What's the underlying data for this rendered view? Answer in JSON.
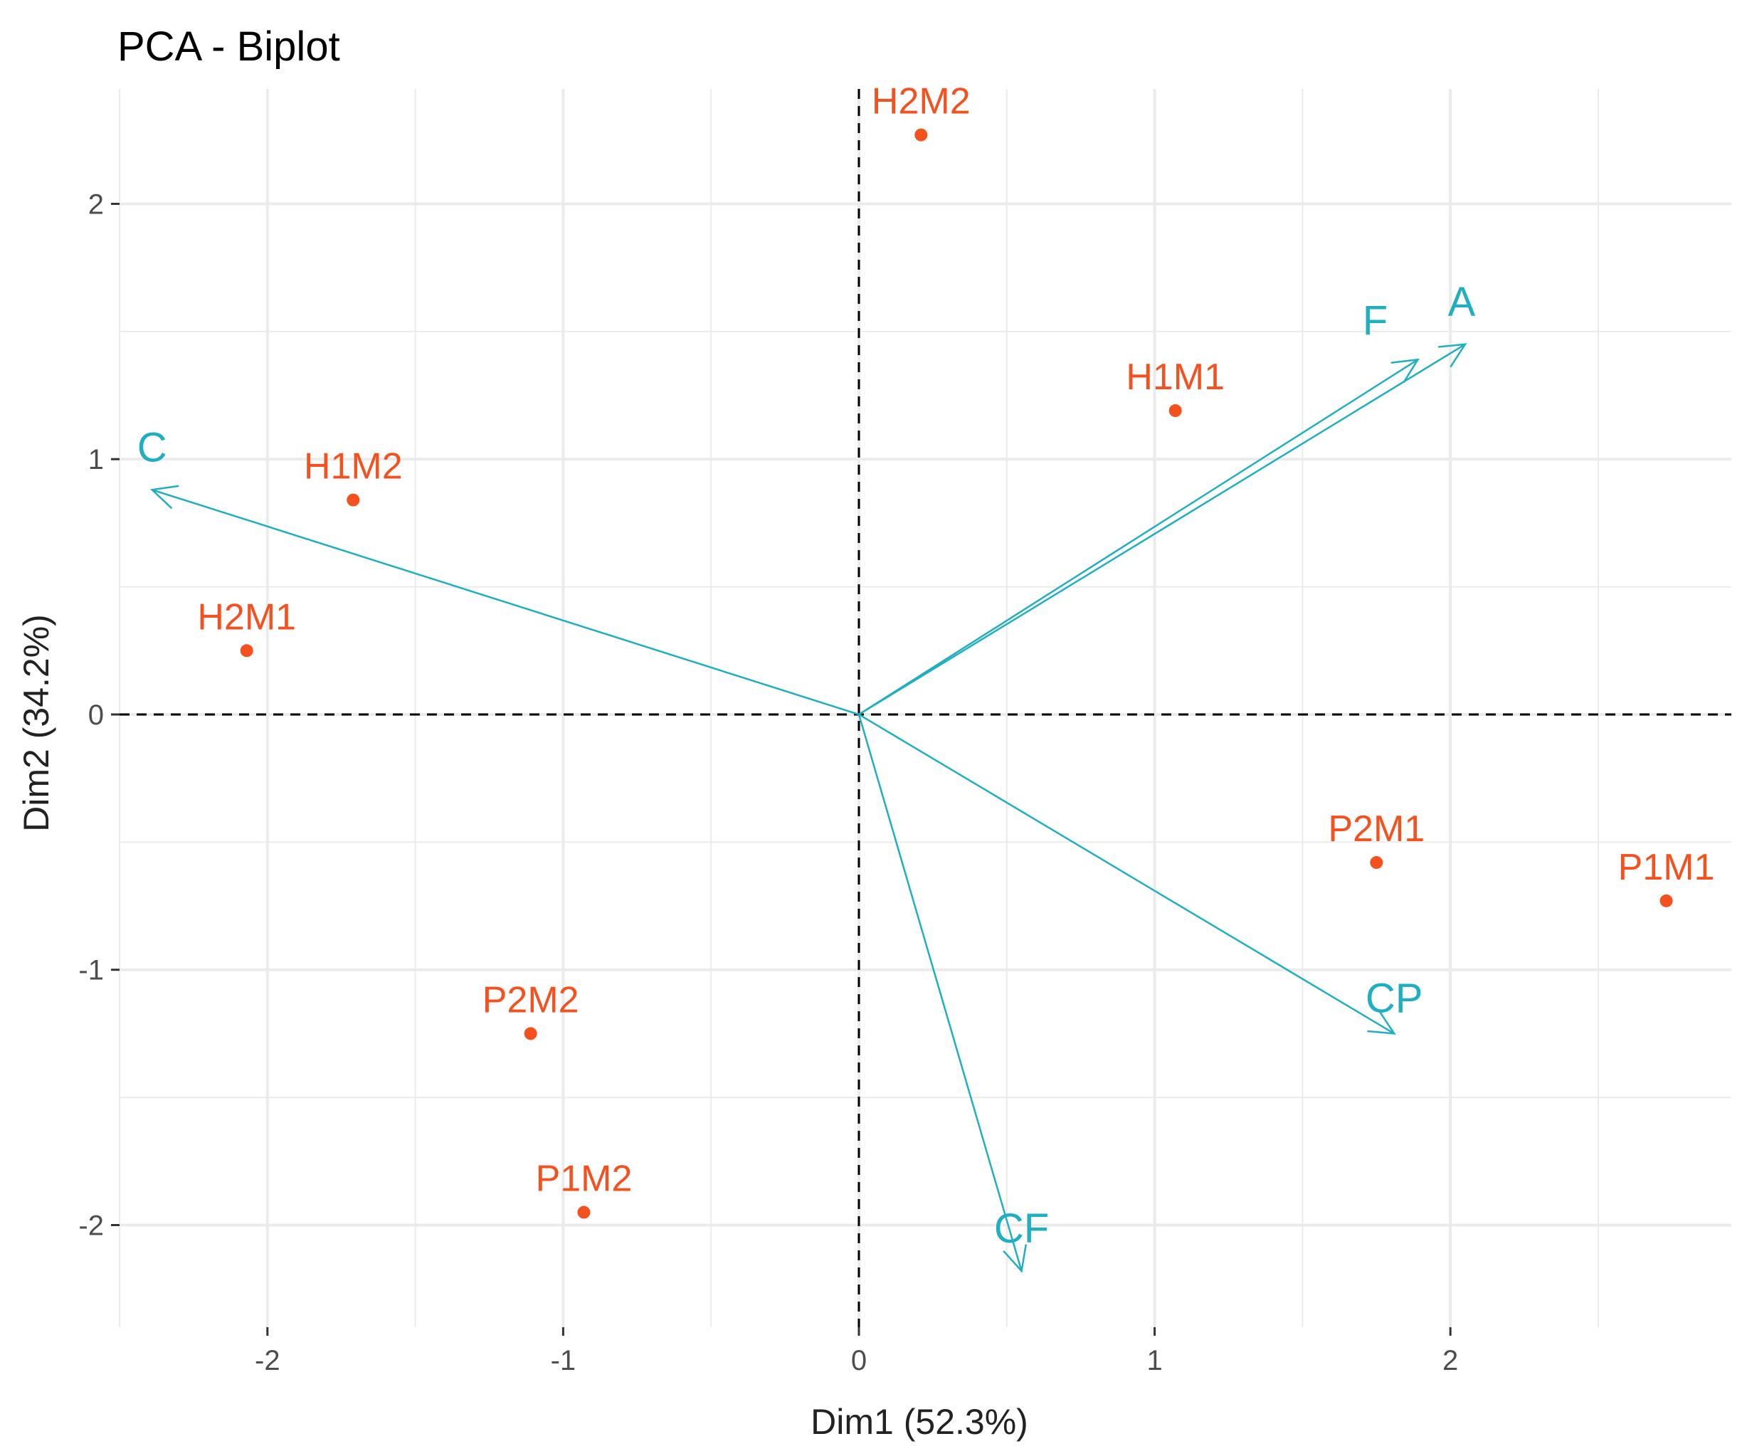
{
  "chart_data": {
    "type": "scatter",
    "subtype": "pca-biplot",
    "title": "PCA - Biplot",
    "xlabel": "Dim1 (52.3%)",
    "ylabel": "Dim2 (34.2%)",
    "xlim": [
      -2.5,
      2.95
    ],
    "ylim": [
      -2.4,
      2.45
    ],
    "xticks": [
      -2,
      -1,
      0,
      1,
      2
    ],
    "yticks": [
      -2,
      -1,
      0,
      1,
      2
    ],
    "grid": true,
    "legend": "none",
    "reference_lines": {
      "x": 0,
      "y": 0,
      "style": "dashed"
    },
    "colors": {
      "individuals": "#F4511E",
      "variables": "#1FAFC0",
      "grid": "#EBEBEB",
      "reference": "#000000"
    },
    "individuals": [
      {
        "label": "H2M2",
        "x": 0.21,
        "y": 2.27
      },
      {
        "label": "H1M1",
        "x": 1.07,
        "y": 1.19
      },
      {
        "label": "H1M2",
        "x": -1.71,
        "y": 0.84
      },
      {
        "label": "H2M1",
        "x": -2.07,
        "y": 0.25
      },
      {
        "label": "P2M1",
        "x": 1.75,
        "y": -0.58
      },
      {
        "label": "P1M1",
        "x": 2.73,
        "y": -0.73
      },
      {
        "label": "P2M2",
        "x": -1.11,
        "y": -1.25
      },
      {
        "label": "P1M2",
        "x": -0.93,
        "y": -1.95
      }
    ],
    "variables": [
      {
        "label": "F",
        "x": 1.89,
        "y": 1.39
      },
      {
        "label": "A",
        "x": 2.05,
        "y": 1.45
      },
      {
        "label": "C",
        "x": -2.39,
        "y": 0.88
      },
      {
        "label": "CP",
        "x": 1.81,
        "y": -1.25
      },
      {
        "label": "CF",
        "x": 0.55,
        "y": -2.18
      }
    ]
  }
}
